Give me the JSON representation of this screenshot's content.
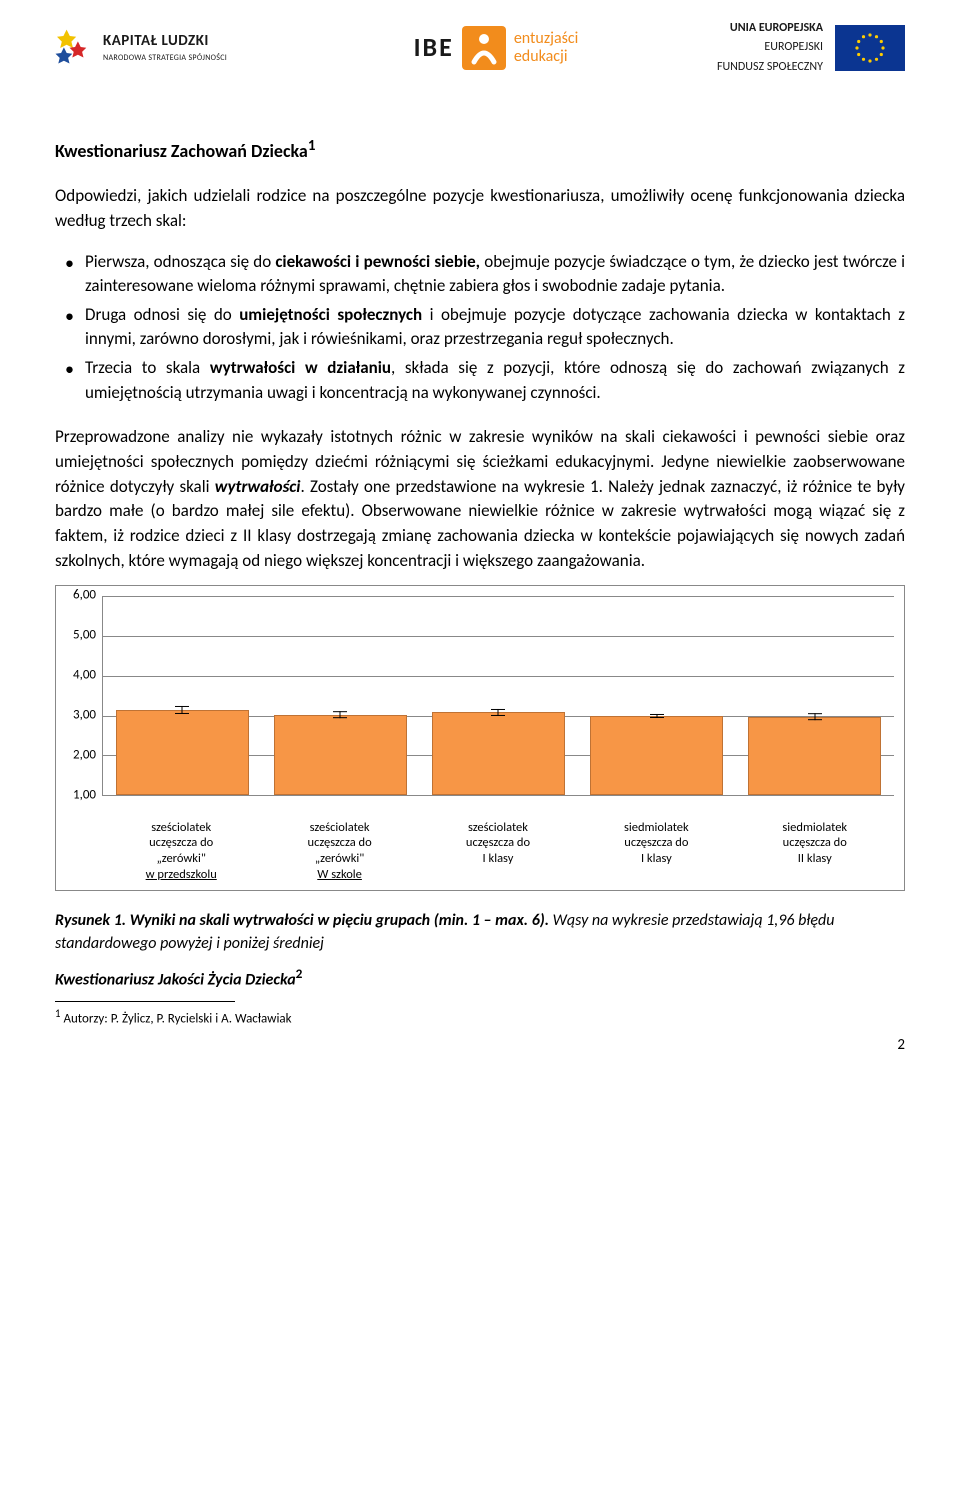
{
  "header": {
    "kl_title": "KAPITAŁ LUDZKI",
    "kl_sub": "NARODOWA STRATEGIA SPÓJNOŚCI",
    "ibe_text": "IBE",
    "ibe_line1": "entuzjaści",
    "ibe_line2": "edukacji",
    "eu_line1": "UNIA EUROPEJSKA",
    "eu_line2": "EUROPEJSKI",
    "eu_line3": "FUNDUSZ SPOŁECZNY"
  },
  "doc": {
    "title": "Kwestionariusz Zachowań Dziecka",
    "title_sup": "1",
    "intro": "Odpowiedzi, jakich udzielali rodzice na poszczególne pozycje kwestionariusza, umożliwiły ocenę funkcjonowania dziecka według trzech skal:",
    "bullets": [
      {
        "pre": "Pierwsza, odnosząca się do ",
        "b": "ciekawości i pewności siebie,",
        "post": " obejmuje pozycje świadczące o tym, że dziecko jest twórcze i zainteresowane wieloma różnymi sprawami, chętnie zabiera głos i swobodnie zadaje pytania."
      },
      {
        "pre": "Druga odnosi się do ",
        "b": "umiejętności społecznych",
        "post": " i obejmuje pozycje dotyczące zachowania dziecka w kontaktach z innymi, zarówno dorosłymi, jak i rówieśnikami, oraz przestrzegania reguł społecznych."
      },
      {
        "pre": "Trzecia to skala ",
        "b": "wytrwałości w działaniu",
        "post": ", składa się z pozycji, które odnoszą się do zachowań związanych z umiejętnością utrzymania uwagi i koncentracją na wykonywanej czynności."
      }
    ],
    "para1_a": "Przeprowadzone analizy nie wykazały istotnych różnic w zakresie wyników na skali ciekawości i pewności siebie oraz umiejętności społecznych pomiędzy dziećmi różniącymi się ścieżkami edukacyjnymi. Jedyne niewielkie zaobserwowane różnice dotyczyły skali ",
    "para1_b": "wytrwałości",
    "para1_c": ". Zostały one przedstawione na wykresie 1. Należy jednak zaznaczyć, iż różnice te były bardzo małe (o bardzo małej sile efektu). Obserwowane niewielkie różnice w zakresie wytrwałości mogą wiązać się z faktem, iż rodzice dzieci z II klasy dostrzegają zmianę zachowania dziecka w kontekście pojawiających się nowych zadań szkolnych, które wymagają od niego większej koncentracji i większego zaangażowania.",
    "figcap_bold": "Rysunek 1. Wyniki na skali wytrwałości w pięciu grupach (min. 1 – max. 6).",
    "figcap_rest": " Wąsy na wykresie przedstawiają 1,96 błędu standardowego powyżej i poniżej średniej",
    "subtitle": "Kwestionariusz Jakości Życia Dziecka",
    "subtitle_sup": "2",
    "footnote_marker": "1",
    "footnote_text": " Autorzy: P. Żylicz, P. Rycielski i A. Wacławiak",
    "pagenum": "2"
  },
  "chart": {
    "type": "bar",
    "y_min": 1.0,
    "y_max": 6.0,
    "y_ticks": [
      "6,00",
      "5,00",
      "4,00",
      "3,00",
      "2,00",
      "1,00"
    ],
    "bar_color": "#f79646",
    "bar_border": "#bf7234",
    "grid_color": "#888888",
    "categories": [
      {
        "l1": "sześciolatek",
        "l2": "uczęszcza do",
        "l3": "„zerówki\"",
        "l4": "w przedszkolu",
        "value": 3.15,
        "err": 0.1
      },
      {
        "l1": "sześciolatek",
        "l2": "uczęszcza do",
        "l3": "„zerówki\"",
        "l4": "W szkole",
        "value": 3.02,
        "err": 0.08
      },
      {
        "l1": "sześciolatek",
        "l2": "uczęszcza do",
        "l3": "I klasy",
        "l4": "",
        "value": 3.08,
        "err": 0.1
      },
      {
        "l1": "siedmiolatek",
        "l2": "uczęszcza do",
        "l3": "I klasy",
        "l4": "",
        "value": 3.0,
        "err": 0.05
      },
      {
        "l1": "siedmiolatek",
        "l2": "uczęszcza do",
        "l3": "II klasy",
        "l4": "",
        "value": 2.97,
        "err": 0.08
      }
    ]
  }
}
